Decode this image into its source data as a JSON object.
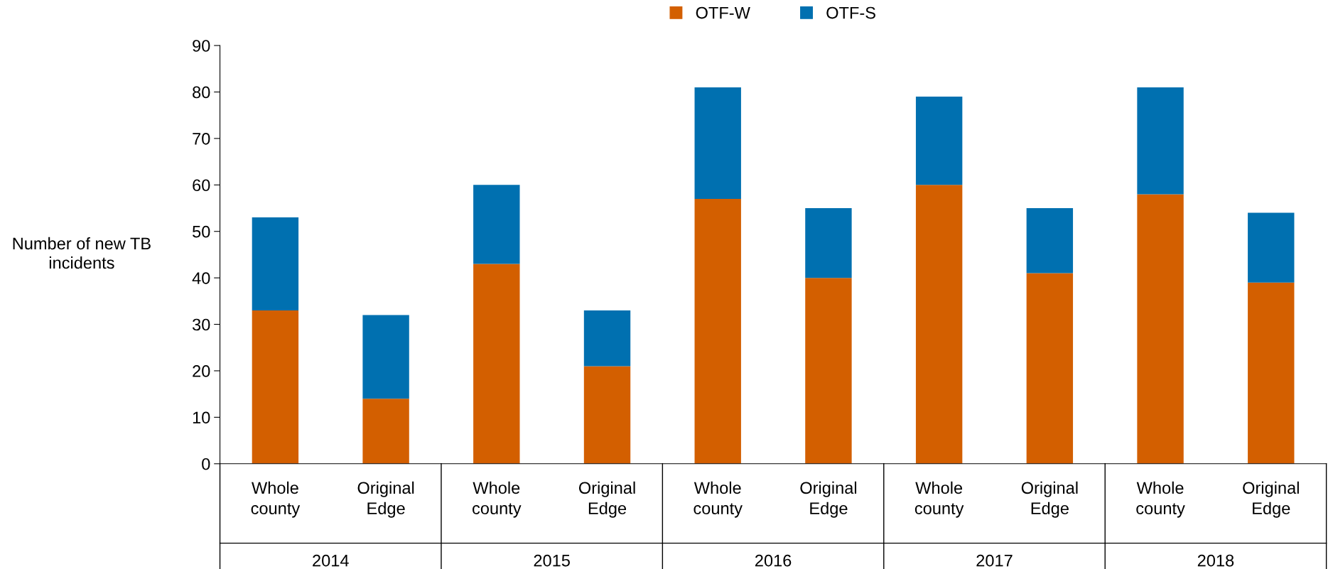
{
  "chart_data": {
    "type": "bar",
    "stacked": true,
    "ylabel": "Number of new TB incidents",
    "categories": [
      "Whole county",
      "Original Edge",
      "Whole county",
      "Original Edge",
      "Whole county",
      "Original Edge",
      "Whole county",
      "Original Edge",
      "Whole county",
      "Original Edge"
    ],
    "series": [
      {
        "name": "OTF-W",
        "color": "#d35f00",
        "values": [
          33,
          14,
          43,
          21,
          57,
          40,
          60,
          41,
          58,
          39
        ]
      },
      {
        "name": "OTF-S",
        "color": "#0070b0",
        "values": [
          20,
          18,
          17,
          12,
          24,
          15,
          19,
          14,
          23,
          15
        ]
      }
    ],
    "annotations": [
      "2014",
      "2015",
      "2016",
      "2017",
      "2018"
    ],
    "ylim": [
      0,
      90
    ],
    "yticks": [
      0,
      10,
      20,
      30,
      40,
      50,
      60,
      70,
      80,
      90
    ],
    "grid": false,
    "legend": "top"
  }
}
